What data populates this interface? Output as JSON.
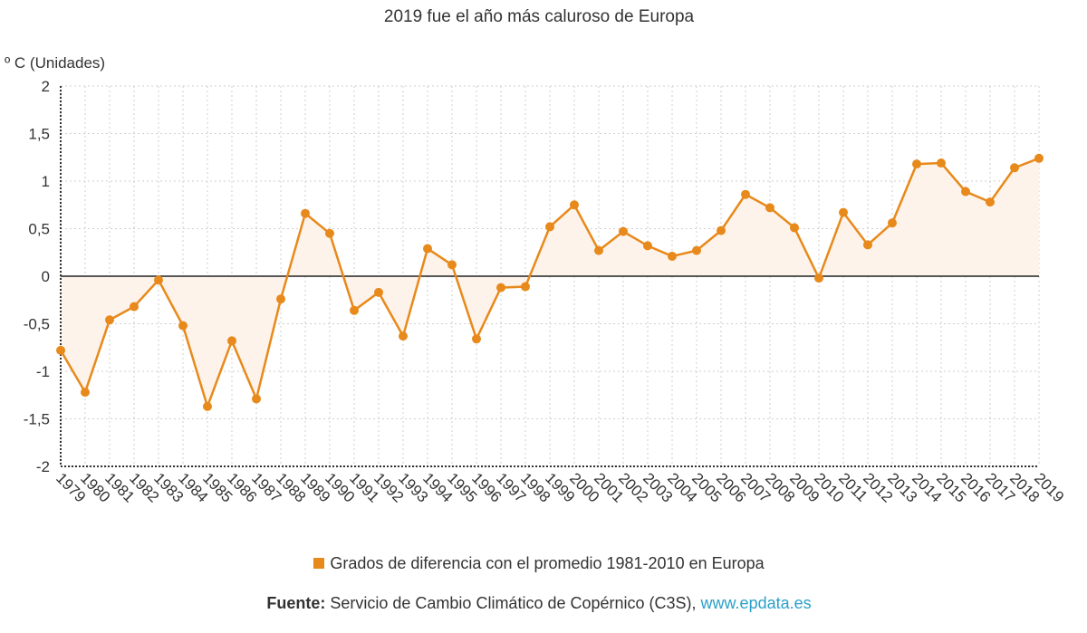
{
  "chart_data": {
    "type": "area",
    "title": "2019 fue el año más caluroso de Europa",
    "ylabel": "º C (Unidades)",
    "ylim": [
      -2,
      2
    ],
    "yticks": [
      2,
      1.5,
      1,
      0.5,
      0,
      -0.5,
      -1,
      -1.5,
      -2
    ],
    "ytick_labels": [
      "2",
      "1,5",
      "1",
      "0,5",
      "0",
      "-0,5",
      "-1",
      "-1,5",
      "-2"
    ],
    "grid": true,
    "legend_position": "bottom",
    "categories": [
      "1979",
      "1980",
      "1981",
      "1982",
      "1983",
      "1984",
      "1985",
      "1986",
      "1987",
      "1988",
      "1989",
      "1990",
      "1991",
      "1992",
      "1993",
      "1994",
      "1995",
      "1996",
      "1997",
      "1998",
      "1999",
      "2000",
      "2001",
      "2002",
      "2003",
      "2004",
      "2005",
      "2006",
      "2007",
      "2008",
      "2009",
      "2010",
      "2011",
      "2012",
      "2013",
      "2014",
      "2015",
      "2016",
      "2017",
      "2018",
      "2019"
    ],
    "series": [
      {
        "name": "Grados de diferencia con el promedio 1981-2010 en Europa",
        "color": "#e8891b",
        "fill": "#fdf3ea",
        "values": [
          -0.78,
          -1.22,
          -0.46,
          -0.32,
          -0.04,
          -0.52,
          -1.37,
          -0.68,
          -1.29,
          -0.24,
          0.66,
          0.45,
          -0.36,
          -0.17,
          -0.63,
          0.29,
          0.12,
          -0.66,
          -0.12,
          -0.11,
          0.52,
          0.75,
          0.27,
          0.47,
          0.32,
          0.21,
          0.27,
          0.48,
          0.86,
          0.72,
          0.51,
          -0.02,
          0.67,
          0.33,
          0.56,
          1.18,
          1.19,
          0.89,
          0.78,
          1.14,
          1.24
        ]
      }
    ]
  },
  "legend": {
    "label": "Grados de diferencia con el promedio 1981-2010 en Europa"
  },
  "source": {
    "label": "Fuente:",
    "text": " Servicio de Cambio Climático de Copérnico (C3S), ",
    "link": "www.epdata.es"
  }
}
